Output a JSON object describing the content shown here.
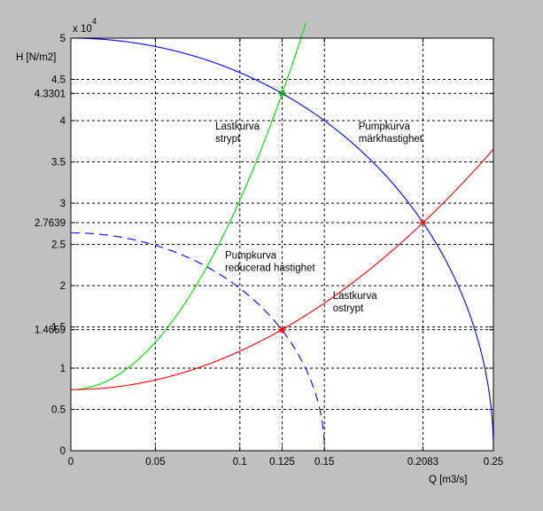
{
  "chart_data": {
    "type": "line",
    "title": "",
    "xlabel": "Q [m3/s]",
    "ylabel": "H [N/m2]",
    "y_multiplier": "x 10",
    "y_exponent": "4",
    "xlim": [
      0,
      0.25
    ],
    "ylim": [
      0,
      50000
    ],
    "grid": true,
    "legend": "none",
    "x_ticks": [
      {
        "value": 0,
        "label": "0"
      },
      {
        "value": 0.05,
        "label": "0.05"
      },
      {
        "value": 0.1,
        "label": "0.1"
      },
      {
        "value": 0.125,
        "label": "0.125"
      },
      {
        "value": 0.15,
        "label": "0.15"
      },
      {
        "value": 0.2083,
        "label": "0.2083"
      },
      {
        "value": 0.25,
        "label": "0.25"
      }
    ],
    "y_ticks": [
      {
        "value": 0,
        "label": "0"
      },
      {
        "value": 5000,
        "label": "0.5"
      },
      {
        "value": 10000,
        "label": "1"
      },
      {
        "value": 14659,
        "label": "1.4659"
      },
      {
        "value": 15000,
        "label": "1.5"
      },
      {
        "value": 20000,
        "label": "2"
      },
      {
        "value": 25000,
        "label": "2.5"
      },
      {
        "value": 27639,
        "label": "2.7639"
      },
      {
        "value": 30000,
        "label": "3"
      },
      {
        "value": 35000,
        "label": "3.5"
      },
      {
        "value": 40000,
        "label": "4"
      },
      {
        "value": 43301,
        "label": "4.3301"
      },
      {
        "value": 45000,
        "label": "4.5"
      },
      {
        "value": 50000,
        "label": "5"
      }
    ],
    "series": [
      {
        "key": "pump_rated",
        "color": "#0000ff",
        "dash": false,
        "kind": "ellipse",
        "H0": 50000,
        "Qmax": 0.25
      },
      {
        "key": "pump_reduced",
        "color": "#0000ff",
        "dash": true,
        "kind": "ellipse",
        "H0": 26400,
        "Qmax": 0.15
      },
      {
        "key": "load_throttled",
        "color": "#00dd00",
        "dash": false,
        "kind": "parabola",
        "H0": 7400,
        "k": 2297600,
        "Qend": 0.1391
      },
      {
        "key": "load_unthrottled",
        "color": "#ff0000",
        "dash": false,
        "kind": "parabola",
        "H0": 7400,
        "k": 466100,
        "Qend": 0.25
      }
    ],
    "intersections": [
      {
        "x": 0.125,
        "y": 43301,
        "color": "#00aa00"
      },
      {
        "x": 0.2083,
        "y": 27639,
        "color": "#ff0000"
      },
      {
        "x": 0.125,
        "y": 14659,
        "color": "#ff0000"
      }
    ],
    "annotations": [
      {
        "key": "load_throttled",
        "lines": [
          "Lastkurva",
          "strypt"
        ]
      },
      {
        "key": "pump_rated",
        "lines": [
          "Pumpkurva",
          "märkhastighet"
        ]
      },
      {
        "key": "pump_reduced",
        "lines": [
          "Pumpkurva",
          "reducerad hastighet"
        ]
      },
      {
        "key": "load_unthrottled",
        "lines": [
          "Lastkurva",
          "ostrypt"
        ]
      }
    ]
  }
}
